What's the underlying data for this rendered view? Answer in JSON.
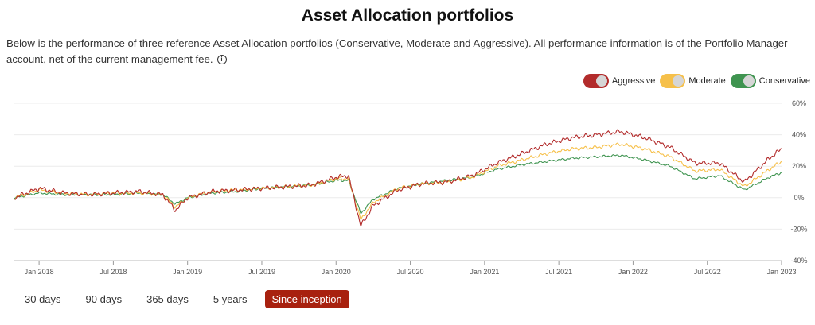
{
  "header": {
    "title": "Asset Allocation portfolios",
    "description": "Below is the performance of three reference Asset Allocation portfolios (Conservative, Moderate and Aggressive). All performance information is of the Portfolio Manager account, net of the current management fee."
  },
  "icons": {
    "info": "info-circle-icon"
  },
  "colors": {
    "aggressive": "#b22b2b",
    "moderate": "#f6c04a",
    "conservative": "#3f9450",
    "active_tab": "#a8210f"
  },
  "legend": [
    {
      "label": "Aggressive",
      "toggle_on": true
    },
    {
      "label": "Moderate",
      "toggle_on": true
    },
    {
      "label": "Conservative",
      "toggle_on": true
    }
  ],
  "tabs": [
    {
      "label": "30 days",
      "active": false
    },
    {
      "label": "90 days",
      "active": false
    },
    {
      "label": "365 days",
      "active": false
    },
    {
      "label": "5 years",
      "active": false
    },
    {
      "label": "Since inception",
      "active": true
    }
  ],
  "chart_data": {
    "type": "line",
    "x_tick_labels": [
      "Jan 2018",
      "Jul 2018",
      "Jan 2019",
      "Jul 2019",
      "Jan 2020",
      "Jul 2020",
      "Jan 2021",
      "Jul 2021",
      "Jan 2022",
      "Jul 2022",
      "Jan 2023"
    ],
    "y_tick_labels": [
      "60%",
      "40%",
      "20%",
      "0%",
      "-20%",
      "-40%"
    ],
    "ylim": [
      -40,
      60
    ],
    "grid": true,
    "legend_position": "top-right",
    "x": [
      "2017-11",
      "2018-01",
      "2018-03",
      "2018-05",
      "2018-07",
      "2018-09",
      "2018-11",
      "2018-12",
      "2019-01",
      "2019-03",
      "2019-05",
      "2019-07",
      "2019-09",
      "2019-11",
      "2020-01",
      "2020-02",
      "2020-03",
      "2020-04",
      "2020-06",
      "2020-08",
      "2020-10",
      "2020-12",
      "2021-02",
      "2021-04",
      "2021-06",
      "2021-08",
      "2021-10",
      "2021-12",
      "2022-02",
      "2022-04",
      "2022-06",
      "2022-08",
      "2022-10",
      "2022-12",
      "2023-01"
    ],
    "series": [
      {
        "name": "Aggressive",
        "values": [
          0,
          6,
          3,
          2,
          3,
          4,
          2,
          -8,
          0,
          4,
          5,
          6,
          7,
          8,
          13,
          14,
          -18,
          -5,
          5,
          9,
          10,
          14,
          22,
          28,
          34,
          38,
          40,
          42,
          38,
          32,
          22,
          22,
          10,
          25,
          31
        ]
      },
      {
        "name": "Moderate",
        "values": [
          0,
          5,
          3,
          2,
          3,
          3,
          2,
          -6,
          0,
          4,
          5,
          6,
          7,
          8,
          12,
          12,
          -14,
          -3,
          6,
          9,
          10,
          13,
          20,
          24,
          28,
          31,
          32,
          34,
          31,
          26,
          17,
          18,
          7,
          18,
          23
        ]
      },
      {
        "name": "Conservative",
        "values": [
          0,
          3,
          2,
          2,
          2,
          3,
          2,
          -4,
          0,
          3,
          4,
          6,
          7,
          8,
          11,
          11,
          -10,
          -1,
          6,
          9,
          11,
          13,
          18,
          21,
          23,
          25,
          26,
          27,
          24,
          20,
          12,
          14,
          5,
          13,
          16
        ]
      }
    ]
  }
}
